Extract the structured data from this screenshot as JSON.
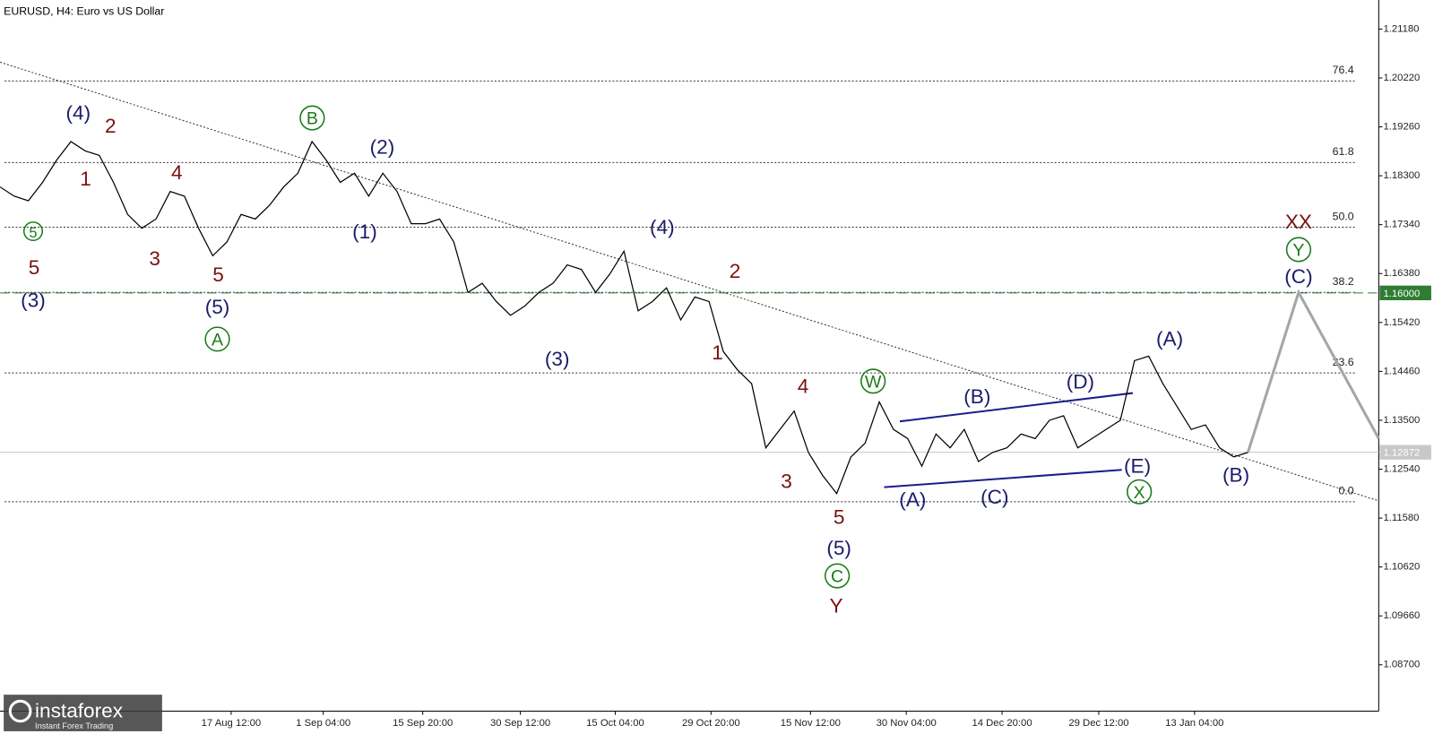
{
  "chart_data": {
    "type": "line",
    "title": "EURUSD, H4:  Euro vs US Dollar",
    "x_labels": [
      "17 Aug 12:00",
      "1 Sep 04:00",
      "15 Sep 20:00",
      "30 Sep 12:00",
      "15 Oct 04:00",
      "29 Oct 20:00",
      "15 Nov 12:00",
      "30 Nov 04:00",
      "14 Dec 20:00",
      "29 Dec 12:00",
      "13 Jan 04:00"
    ],
    "values": [
      1.1808,
      1.179,
      1.1781,
      1.1817,
      1.1861,
      1.1897,
      1.1879,
      1.187,
      1.1817,
      1.1754,
      1.1727,
      1.1745,
      1.1799,
      1.179,
      1.1727,
      1.1673,
      1.17,
      1.1754,
      1.1745,
      1.1772,
      1.1808,
      1.1835,
      1.1897,
      1.1861,
      1.1817,
      1.1835,
      1.179,
      1.1835,
      1.1799,
      1.1736,
      1.1736,
      1.1745,
      1.17,
      1.1601,
      1.1619,
      1.1583,
      1.1556,
      1.1574,
      1.1601,
      1.1619,
      1.1655,
      1.1646,
      1.1601,
      1.1637,
      1.1682,
      1.1565,
      1.1583,
      1.161,
      1.1547,
      1.1592,
      1.1583,
      1.1485,
      1.1449,
      1.1422,
      1.1296,
      1.1332,
      1.1368,
      1.1287,
      1.1242,
      1.1206,
      1.1278,
      1.1305,
      1.1386,
      1.1332,
      1.1314,
      1.126,
      1.1323,
      1.1296,
      1.1332,
      1.1269,
      1.1287,
      1.1296,
      1.1323,
      1.1314,
      1.135,
      1.1359,
      1.1296,
      1.1314,
      1.1332,
      1.135,
      1.1467,
      1.1476,
      1.1422,
      1.1377,
      1.1332,
      1.1341,
      1.1296,
      1.1278,
      1.1287
    ],
    "forecast": [
      1.1287,
      1.1601,
      1.1314
    ],
    "color": "#000000",
    "forecast_color": "#a6a6a6",
    "ylim": [
      1.0779,
      1.2175
    ],
    "yticks": [
      {
        "value": 1.2118,
        "label": "1.21180"
      },
      {
        "value": 1.2022,
        "label": "1.20220"
      },
      {
        "value": 1.1926,
        "label": "1.19260"
      },
      {
        "value": 1.183,
        "label": "1.18300"
      },
      {
        "value": 1.1734,
        "label": "1.17340"
      },
      {
        "value": 1.1638,
        "label": "1.16380"
      },
      {
        "value": 1.1542,
        "label": "1.15420"
      },
      {
        "value": 1.1446,
        "label": "1.14460"
      },
      {
        "value": 1.135,
        "label": "1.13500"
      },
      {
        "value": 1.1254,
        "label": "1.12540"
      },
      {
        "value": 1.1158,
        "label": "1.11580"
      },
      {
        "value": 1.1062,
        "label": "1.10620"
      },
      {
        "value": 1.0966,
        "label": "1.09660"
      },
      {
        "value": 1.087,
        "label": "1.08700"
      }
    ],
    "fib_levels": [
      {
        "label": "76.4",
        "value": 1.2016
      },
      {
        "label": "61.8",
        "value": 1.1856
      },
      {
        "label": "50.0",
        "value": 1.1729
      },
      {
        "label": "38.2",
        "value": 1.1601
      },
      {
        "label": "23.6",
        "value": 1.1443
      },
      {
        "label": "0.0",
        "value": 1.119
      }
    ],
    "level": {
      "value": 1.16,
      "label": "1.16000",
      "color": "#2e7d32"
    },
    "last_price": {
      "value": 1.12872,
      "label": "1.12872"
    },
    "annotations": [
      {
        "text": "(4)",
        "color": "#1c1c6c"
      },
      {
        "text": "2",
        "color": "#7a1010"
      },
      {
        "text": "1",
        "color": "#7a1010"
      },
      {
        "text": "4",
        "color": "#7a1010"
      },
      {
        "text": "3",
        "color": "#7a1010"
      },
      {
        "text": "5",
        "color": "#7a1010"
      },
      {
        "text": "(5)",
        "color": "#1c1c6c"
      },
      {
        "text": "A",
        "color": "#1a7a1a",
        "circled": true
      },
      {
        "text": "5",
        "color": "#1a7a1a",
        "circled": true
      },
      {
        "text": "5",
        "color": "#7a1010"
      },
      {
        "text": "(3)",
        "color": "#1c1c6c"
      },
      {
        "text": "B",
        "color": "#1a7a1a",
        "circled": true
      },
      {
        "text": "(2)",
        "color": "#1c1c6c"
      },
      {
        "text": "(1)",
        "color": "#1c1c6c"
      },
      {
        "text": "(3)",
        "color": "#1c1c6c"
      },
      {
        "text": "(4)",
        "color": "#1c1c6c"
      },
      {
        "text": "2",
        "color": "#7a1010"
      },
      {
        "text": "1",
        "color": "#7a1010"
      },
      {
        "text": "4",
        "color": "#7a1010"
      },
      {
        "text": "3",
        "color": "#7a1010"
      },
      {
        "text": "5",
        "color": "#7a1010"
      },
      {
        "text": "(5)",
        "color": "#1c1c6c"
      },
      {
        "text": "C",
        "color": "#1a7a1a",
        "circled": true
      },
      {
        "text": "Y",
        "color": "#7a1010"
      },
      {
        "text": "W",
        "color": "#1a7a1a",
        "circled": true
      },
      {
        "text": "(A)",
        "color": "#1c1c6c"
      },
      {
        "text": "(B)",
        "color": "#1c1c6c"
      },
      {
        "text": "(C)",
        "color": "#1c1c6c"
      },
      {
        "text": "(D)",
        "color": "#1c1c6c"
      },
      {
        "text": "(E)",
        "color": "#1c1c6c"
      },
      {
        "text": "X",
        "color": "#1a7a1a",
        "circled": true
      },
      {
        "text": "(A)",
        "color": "#1c1c6c"
      },
      {
        "text": "(B)",
        "color": "#1c1c6c"
      },
      {
        "text": "(C)",
        "color": "#1c1c6c"
      },
      {
        "text": "Y",
        "color": "#1a7a1a",
        "circled": true
      },
      {
        "text": "XX",
        "color": "#7a1010"
      }
    ],
    "grid": false
  },
  "logo": {
    "name": "instaforex",
    "tagline": "Instant Forex Trading"
  }
}
